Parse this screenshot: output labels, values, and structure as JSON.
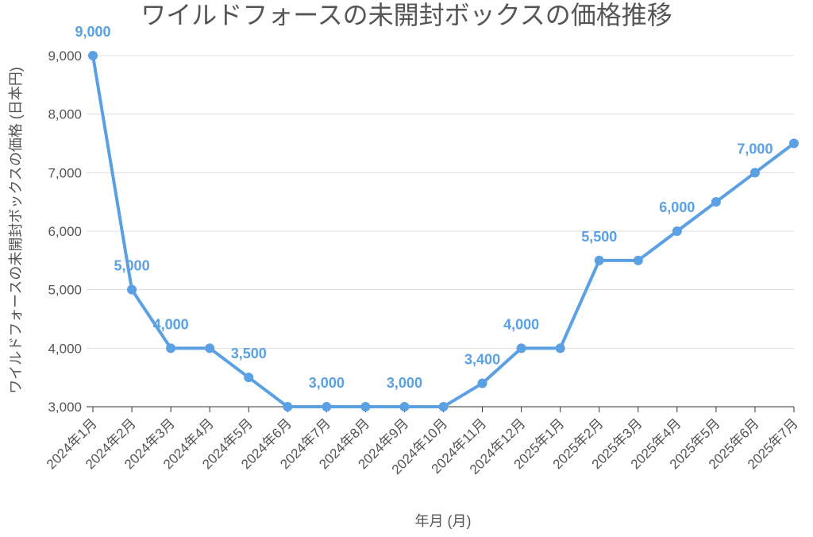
{
  "chart_data": {
    "type": "line",
    "title": "ワイルドフォースの未開封ボックスの価格推移",
    "xlabel": "年月 (月)",
    "ylabel": "ワイルドフォースの未開封ボックスの価格 (日本円)",
    "categories": [
      "2024年1月",
      "2024年2月",
      "2024年3月",
      "2024年4月",
      "2024年5月",
      "2024年6月",
      "2024年7月",
      "2024年8月",
      "2024年9月",
      "2024年10月",
      "2024年11月",
      "2024年12月",
      "2025年1月",
      "2025年2月",
      "2025年3月",
      "2025年4月",
      "2025年5月",
      "2025年6月",
      "2025年7月"
    ],
    "values": [
      9000,
      5000,
      4000,
      4000,
      3500,
      3000,
      3000,
      3000,
      3000,
      3000,
      3400,
      4000,
      4000,
      5500,
      5500,
      6000,
      6500,
      7000,
      7500
    ],
    "data_labels": [
      {
        "index": 0,
        "text": "9,000"
      },
      {
        "index": 1,
        "text": "5,000"
      },
      {
        "index": 2,
        "text": "4,000"
      },
      {
        "index": 4,
        "text": "3,500"
      },
      {
        "index": 6,
        "text": "3,000"
      },
      {
        "index": 8,
        "text": "3,000"
      },
      {
        "index": 10,
        "text": "3,400"
      },
      {
        "index": 11,
        "text": "4,000"
      },
      {
        "index": 13,
        "text": "5,500"
      },
      {
        "index": 15,
        "text": "6,000"
      },
      {
        "index": 17,
        "text": "7,000"
      }
    ],
    "y_ticks": [
      3000,
      4000,
      5000,
      6000,
      7000,
      8000,
      9000
    ],
    "y_tick_labels": [
      "3,000",
      "4,000",
      "5,000",
      "6,000",
      "7,000",
      "8,000",
      "9,000"
    ],
    "ylim": [
      3000,
      9000
    ],
    "grid": true,
    "line_color": "#5aa0e3"
  }
}
